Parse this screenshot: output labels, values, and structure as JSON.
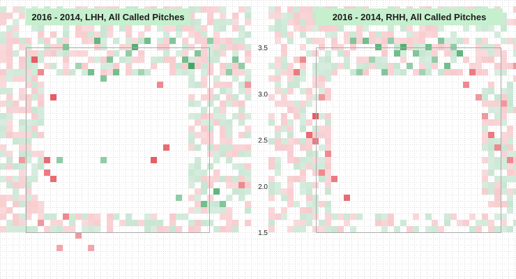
{
  "chart_data": [
    {
      "type": "heatmap",
      "title": "2016 - 2014, LHH, All Called Pitches",
      "panel": "left",
      "y_tick_labels": [
        "3.5",
        "3.0",
        "2.5",
        "2.0",
        "1.5"
      ],
      "y_ticks": [
        3.5,
        3.0,
        2.5,
        2.0,
        1.5
      ],
      "ylim": [
        1.0,
        3.75
      ],
      "xlabel": "",
      "ylabel": "",
      "grid": true,
      "legend": "none",
      "colors": {
        "positive": "#2e9e55",
        "negative": "#e23a44",
        "title_bg": "#c6efce",
        "grid": "#b9b9b9",
        "zone": "#a9a9a9"
      },
      "columns": 40,
      "rows": 36,
      "value_range": [
        -1,
        1
      ],
      "cells": [
        [
          3,
          24,
          -0.5
        ],
        [
          5,
          8,
          -0.9
        ],
        [
          6,
          10,
          -0.6
        ],
        [
          7,
          24,
          -0.8
        ],
        [
          7,
          26,
          -0.7
        ],
        [
          8,
          14,
          -0.9
        ],
        [
          8,
          27,
          -0.8
        ],
        [
          9,
          24,
          0.5
        ],
        [
          10,
          6,
          0.6
        ],
        [
          10,
          33,
          -0.6
        ],
        [
          12,
          9,
          0.4
        ],
        [
          14,
          10,
          0.7
        ],
        [
          15,
          5,
          0.8
        ],
        [
          16,
          11,
          0.6
        ],
        [
          16,
          24,
          0.5
        ],
        [
          17,
          8,
          0.6
        ],
        [
          18,
          10,
          0.7
        ],
        [
          20,
          7,
          0.5
        ],
        [
          21,
          6,
          0.9
        ],
        [
          22,
          10,
          0.4
        ],
        [
          23,
          5,
          0.7
        ],
        [
          24,
          24,
          -0.9
        ],
        [
          25,
          12,
          -0.6
        ],
        [
          26,
          22,
          -0.8
        ],
        [
          27,
          5,
          0.6
        ],
        [
          28,
          30,
          0.5
        ],
        [
          29,
          8,
          0.7
        ],
        [
          30,
          9,
          1.0
        ],
        [
          31,
          7,
          0.6
        ],
        [
          32,
          31,
          0.7
        ],
        [
          33,
          5,
          0.5
        ],
        [
          34,
          29,
          0.8
        ],
        [
          35,
          31,
          0.6
        ],
        [
          36,
          10,
          0.5
        ],
        [
          37,
          8,
          0.6
        ],
        [
          38,
          28,
          -0.6
        ],
        [
          38,
          9,
          0.5
        ],
        [
          39,
          12,
          -0.5
        ],
        [
          6,
          34,
          -0.5
        ],
        [
          9,
          38,
          -0.4
        ],
        [
          12,
          36,
          -0.5
        ],
        [
          14,
          38,
          -0.4
        ]
      ]
    },
    {
      "type": "heatmap",
      "title": "2016 - 2014, RHH, All Called Pitches",
      "panel": "right",
      "y_tick_labels": [
        "3.5",
        "3.0",
        "2.5",
        "2.0",
        "1.5"
      ],
      "y_ticks": [
        3.5,
        3.0,
        2.5,
        2.0,
        1.5
      ],
      "ylim": [
        1.0,
        3.75
      ],
      "xlabel": "",
      "ylabel": "",
      "grid": true,
      "legend": "none",
      "colors": {
        "positive": "#2e9e55",
        "negative": "#e23a44",
        "title_bg": "#c6efce",
        "grid": "#b9b9b9",
        "zone": "#a9a9a9"
      },
      "columns": 40,
      "rows": 36,
      "value_range": [
        -1,
        1
      ],
      "cells": [
        [
          4,
          10,
          -0.7
        ],
        [
          5,
          8,
          -0.6
        ],
        [
          6,
          20,
          -0.8
        ],
        [
          7,
          17,
          -0.9
        ],
        [
          7,
          21,
          -0.7
        ],
        [
          8,
          14,
          -0.5
        ],
        [
          8,
          26,
          -0.6
        ],
        [
          9,
          23,
          -0.6
        ],
        [
          10,
          27,
          -0.7
        ],
        [
          12,
          30,
          -0.8
        ],
        [
          13,
          5,
          0.6
        ],
        [
          14,
          10,
          0.5
        ],
        [
          15,
          5,
          0.7
        ],
        [
          16,
          8,
          0.4
        ],
        [
          17,
          6,
          0.8
        ],
        [
          18,
          10,
          0.6
        ],
        [
          19,
          5,
          0.5
        ],
        [
          20,
          7,
          0.7
        ],
        [
          21,
          6,
          0.9
        ],
        [
          22,
          9,
          0.5
        ],
        [
          23,
          7,
          0.6
        ],
        [
          24,
          10,
          0.4
        ],
        [
          25,
          6,
          0.7
        ],
        [
          26,
          8,
          0.5
        ],
        [
          27,
          5,
          0.6
        ],
        [
          28,
          9,
          0.7
        ],
        [
          29,
          6,
          0.5
        ],
        [
          30,
          7,
          0.8
        ],
        [
          31,
          12,
          -0.6
        ],
        [
          32,
          10,
          -0.7
        ],
        [
          33,
          14,
          -0.5
        ],
        [
          34,
          17,
          -0.5
        ],
        [
          35,
          20,
          -0.7
        ],
        [
          36,
          22,
          -0.6
        ],
        [
          37,
          15,
          -0.5
        ],
        [
          38,
          24,
          -0.6
        ],
        [
          39,
          9,
          -0.5
        ]
      ]
    }
  ]
}
